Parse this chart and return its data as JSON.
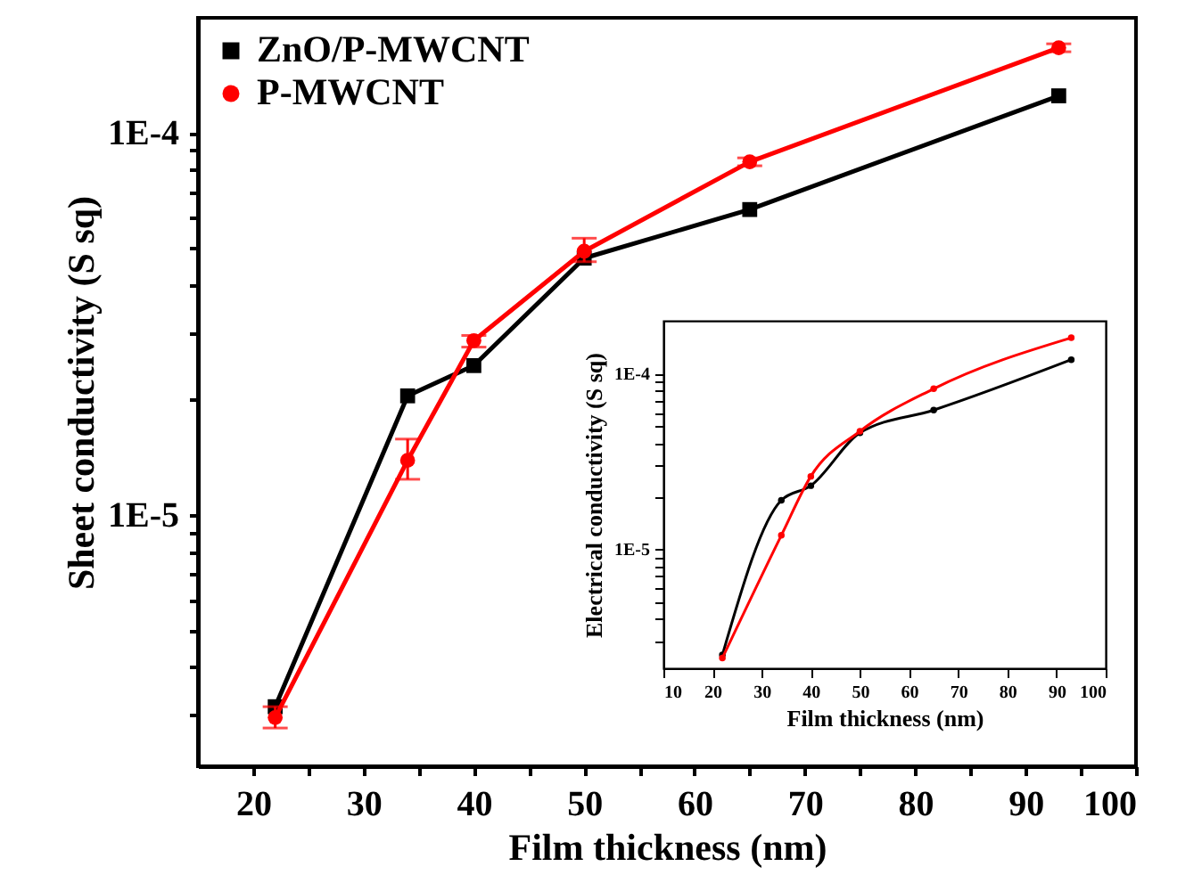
{
  "chart_data": [
    {
      "type": "line",
      "xlabel": "Film thickness (nm)",
      "ylabel": "Sheet conductivity (S sq)",
      "x": [
        22,
        34,
        40,
        50,
        65,
        93
      ],
      "series": [
        {
          "name": "ZnO/P-MWCNT",
          "color": "#000000",
          "marker": "square",
          "values": [
            3.15e-06,
            2.05e-05,
            2.46e-05,
            4.7e-05,
            6.3e-05,
            0.000125
          ]
        },
        {
          "name": "P-MWCNT",
          "color": "#ff0000",
          "marker": "circle",
          "values": [
            2.95e-06,
            1.39e-05,
            2.86e-05,
            4.9e-05,
            8.4e-05,
            0.000167
          ],
          "errors": [
            [
              2.77e-06,
              3.15e-06
            ],
            [
              1.24e-05,
              1.58e-05
            ],
            [
              2.75e-05,
              2.95e-05
            ],
            [
              4.6e-05,
              5.3e-05
            ],
            [
              8.2e-05,
              8.6e-05
            ],
            [
              0.000163,
              0.000171
            ]
          ]
        }
      ],
      "log": "y",
      "xlim": [
        15,
        100
      ],
      "xticks": [
        20,
        {
          "value": 25,
          "label": null
        },
        30,
        {
          "value": 35,
          "label": null
        },
        40,
        {
          "value": 45,
          "label": null
        },
        50,
        {
          "value": 55,
          "label": null
        },
        60,
        {
          "value": 65,
          "label": null
        },
        70,
        {
          "value": 75,
          "label": null
        },
        80,
        {
          "value": 85,
          "label": null
        },
        90,
        {
          "value": 95,
          "label": null
        },
        100
      ],
      "ylim": [
        2.2e-06,
        0.0002
      ],
      "yticks": [
        {
          "value": 3e-06,
          "label": null
        },
        {
          "value": 4e-06,
          "label": null
        },
        {
          "value": 5e-06,
          "label": null
        },
        {
          "value": 6e-06,
          "label": null
        },
        {
          "value": 7e-06,
          "label": null
        },
        {
          "value": 8e-06,
          "label": null
        },
        {
          "value": 9e-06,
          "label": null
        },
        {
          "value": 1e-05,
          "label": "1E-5"
        },
        {
          "value": 2e-05,
          "label": null
        },
        {
          "value": 3e-05,
          "label": null
        },
        {
          "value": 4e-05,
          "label": null
        },
        {
          "value": 5e-05,
          "label": null
        },
        {
          "value": 6e-05,
          "label": null
        },
        {
          "value": 7e-05,
          "label": null
        },
        {
          "value": 8e-05,
          "label": null
        },
        {
          "value": 9e-05,
          "label": null
        },
        {
          "value": 0.0001,
          "label": "1E-4"
        }
      ],
      "legend": "top left",
      "grid": false
    },
    {
      "type": "line",
      "xlabel": "Film thickness (nm)",
      "ylabel": "Electrical conductivity (S sq)",
      "x": [
        22,
        34,
        40,
        50,
        65,
        93
      ],
      "series": [
        {
          "color": "#000000",
          "marker": "circle",
          "values": [
            2.5e-06,
            1.9e-05,
            2.3e-05,
            4.6e-05,
            6.2e-05,
            0.00012
          ]
        },
        {
          "color": "#ff0000",
          "marker": "circle",
          "values": [
            2.4e-06,
            1.2e-05,
            2.6e-05,
            4.7e-05,
            8.2e-05,
            0.00016
          ]
        }
      ],
      "log": "y",
      "xlim": [
        10,
        100
      ],
      "xticks": [
        10,
        20,
        30,
        40,
        50,
        60,
        70,
        80,
        90,
        100
      ],
      "ylim": [
        2.1e-06,
        0.0002
      ],
      "yticks": [
        {
          "value": 3e-06,
          "label": null
        },
        {
          "value": 4e-06,
          "label": null
        },
        {
          "value": 5e-06,
          "label": null
        },
        {
          "value": 6e-06,
          "label": null
        },
        {
          "value": 7e-06,
          "label": null
        },
        {
          "value": 8e-06,
          "label": null
        },
        {
          "value": 9e-06,
          "label": null
        },
        {
          "value": 1e-05,
          "label": "1E-5"
        },
        {
          "value": 2e-05,
          "label": null
        },
        {
          "value": 3e-05,
          "label": null
        },
        {
          "value": 4e-05,
          "label": null
        },
        {
          "value": 5e-05,
          "label": null
        },
        {
          "value": 6e-05,
          "label": null
        },
        {
          "value": 7e-05,
          "label": null
        },
        {
          "value": 8e-05,
          "label": null
        },
        {
          "value": 9e-05,
          "label": null
        },
        {
          "value": 0.0001,
          "label": "1E-4"
        }
      ],
      "grid": false
    }
  ]
}
